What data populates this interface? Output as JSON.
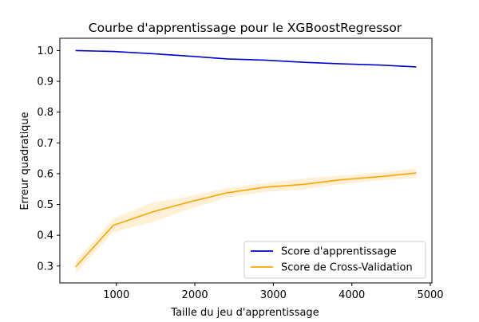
{
  "chart_data": {
    "type": "line",
    "title": "Courbe d'apprentissage pour le XGBoostRegressor",
    "xlabel": "Taille du jeu d'apprentissage",
    "ylabel": "Erreur quadratique",
    "xlim": [
      280,
      5020
    ],
    "ylim": [
      0.245,
      1.04
    ],
    "xticks": [
      1000,
      2000,
      3000,
      4000,
      5000
    ],
    "xtick_labels": [
      "1000",
      "2000",
      "3000",
      "4000",
      "5000"
    ],
    "yticks": [
      0.3,
      0.4,
      0.5,
      0.6,
      0.7,
      0.8,
      0.9,
      1.0
    ],
    "ytick_labels": [
      "0.3",
      "0.4",
      "0.5",
      "0.6",
      "0.7",
      "0.8",
      "0.9",
      "1.0"
    ],
    "grid": false,
    "legend_position": "lower-right",
    "x": [
      480,
      960,
      1450,
      1930,
      2410,
      2890,
      3370,
      3860,
      4340,
      4820
    ],
    "series": [
      {
        "name": "Score d'apprentissage",
        "color": "#0000cd",
        "values": [
          1.0,
          0.997,
          0.99,
          0.982,
          0.973,
          0.969,
          0.962,
          0.957,
          0.953,
          0.947
        ],
        "band_lower": [
          1.0,
          0.997,
          0.99,
          0.982,
          0.973,
          0.969,
          0.962,
          0.957,
          0.953,
          0.947
        ],
        "band_upper": [
          1.0,
          0.997,
          0.99,
          0.982,
          0.973,
          0.969,
          0.962,
          0.957,
          0.953,
          0.947
        ],
        "band_color": "#add8e6"
      },
      {
        "name": "Score de Cross-Validation",
        "color": "#ffa500",
        "values": [
          0.297,
          0.432,
          0.475,
          0.508,
          0.538,
          0.556,
          0.565,
          0.58,
          0.59,
          0.602
        ],
        "band_lower": [
          0.276,
          0.41,
          0.442,
          0.485,
          0.522,
          0.541,
          0.548,
          0.566,
          0.578,
          0.586
        ],
        "band_upper": [
          0.316,
          0.454,
          0.505,
          0.527,
          0.553,
          0.57,
          0.584,
          0.594,
          0.603,
          0.617
        ],
        "band_color": "#ffe4b5"
      }
    ]
  }
}
